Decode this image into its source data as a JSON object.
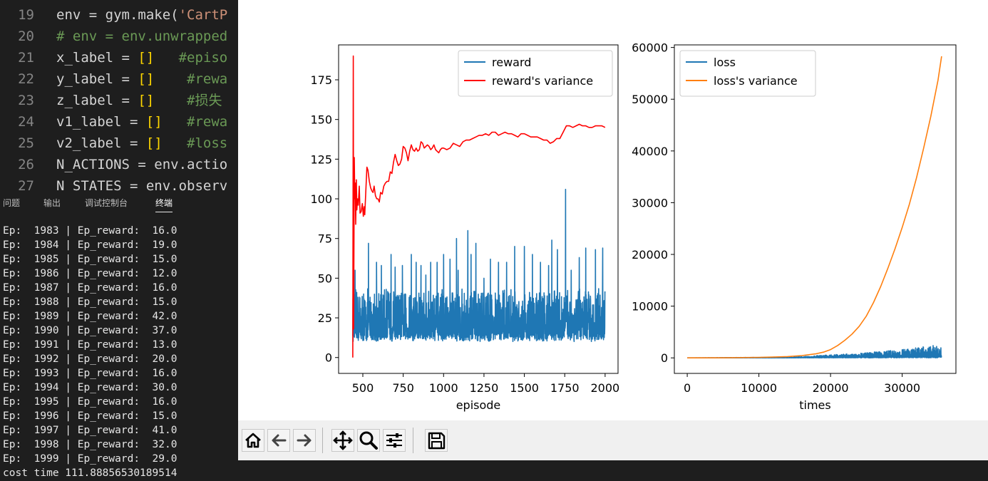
{
  "editor": {
    "lines": [
      {
        "num": "19",
        "code": [
          {
            "t": "env = gym.make(",
            "c": ""
          },
          {
            "t": "'CartP",
            "c": "str"
          }
        ]
      },
      {
        "num": "20",
        "code": [
          {
            "t": "# env = env.unwrapped",
            "c": "cmt"
          }
        ]
      },
      {
        "num": "21",
        "code": [
          {
            "t": "x_label = ",
            "c": ""
          },
          {
            "t": "[]",
            "c": "br"
          },
          {
            "t": "   #episo",
            "c": "cmt"
          }
        ]
      },
      {
        "num": "22",
        "code": [
          {
            "t": "y_label = ",
            "c": ""
          },
          {
            "t": "[]",
            "c": "br"
          },
          {
            "t": "    #rewa",
            "c": "cmt"
          }
        ]
      },
      {
        "num": "23",
        "code": [
          {
            "t": "z_label = ",
            "c": ""
          },
          {
            "t": "[]",
            "c": "br"
          },
          {
            "t": "    #损失",
            "c": "cmt"
          }
        ]
      },
      {
        "num": "24",
        "code": [
          {
            "t": "v1_label = ",
            "c": ""
          },
          {
            "t": "[]",
            "c": "br"
          },
          {
            "t": "   #rewa",
            "c": "cmt"
          }
        ]
      },
      {
        "num": "25",
        "code": [
          {
            "t": "v2_label = ",
            "c": ""
          },
          {
            "t": "[]",
            "c": "br"
          },
          {
            "t": "   #loss",
            "c": "cmt"
          }
        ]
      },
      {
        "num": "26",
        "code": [
          {
            "t": "N_ACTIONS = env.actio",
            "c": ""
          }
        ]
      },
      {
        "num": "27",
        "code": [
          {
            "t": "N_STATES = env.observ",
            "c": ""
          }
        ]
      }
    ]
  },
  "panel": {
    "tabs": [
      "问题",
      "输出",
      "调试控制台",
      "终端"
    ],
    "active_tab": "终端",
    "terminal_lines": [
      "Ep:  1983 | Ep_reward:  16.0",
      "Ep:  1984 | Ep_reward:  19.0",
      "Ep:  1985 | Ep_reward:  15.0",
      "Ep:  1986 | Ep_reward:  12.0",
      "Ep:  1987 | Ep_reward:  16.0",
      "Ep:  1988 | Ep_reward:  15.0",
      "Ep:  1989 | Ep_reward:  42.0",
      "Ep:  1990 | Ep_reward:  37.0",
      "Ep:  1991 | Ep_reward:  13.0",
      "Ep:  1992 | Ep_reward:  20.0",
      "Ep:  1993 | Ep_reward:  16.0",
      "Ep:  1994 | Ep_reward:  30.0",
      "Ep:  1995 | Ep_reward:  16.0",
      "Ep:  1996 | Ep_reward:  15.0",
      "Ep:  1997 | Ep_reward:  41.0",
      "Ep:  1998 | Ep_reward:  32.0",
      "Ep:  1999 | Ep_reward:  29.0",
      "cost time 111.88856530189514"
    ]
  },
  "toolbar": {
    "buttons": [
      "home-icon",
      "back-icon",
      "forward-icon",
      "pan-icon",
      "zoom-icon",
      "configure-subplots-icon",
      "save-icon"
    ]
  },
  "chart_data": [
    {
      "type": "line",
      "xlabel": "episode",
      "ylabel": "",
      "xlim": [
        350,
        2080
      ],
      "ylim": [
        -10,
        197
      ],
      "xticks": [
        500,
        750,
        1000,
        1250,
        1500,
        1750,
        2000
      ],
      "yticks": [
        0,
        25,
        50,
        75,
        100,
        125,
        150,
        175
      ],
      "legend": "top-right",
      "series": [
        {
          "name": "reward",
          "color": "#1f77b4",
          "x_range": [
            438,
            2000
          ],
          "baseline": 10,
          "typical_peak": 40,
          "peaks": [
            [
              445,
              28
            ],
            [
              452,
              55
            ],
            [
              480,
              38
            ],
            [
              505,
              40
            ],
            [
              535,
              72
            ],
            [
              585,
              60
            ],
            [
              615,
              58
            ],
            [
              645,
              43
            ],
            [
              675,
              65
            ],
            [
              700,
              57
            ],
            [
              745,
              58
            ],
            [
              800,
              65
            ],
            [
              830,
              60
            ],
            [
              860,
              58
            ],
            [
              890,
              52
            ],
            [
              920,
              60
            ],
            [
              960,
              60
            ],
            [
              1000,
              65
            ],
            [
              1040,
              62
            ],
            [
              1080,
              75
            ],
            [
              1090,
              55
            ],
            [
              1150,
              80
            ],
            [
              1170,
              65
            ],
            [
              1200,
              72
            ],
            [
              1250,
              50
            ],
            [
              1290,
              62
            ],
            [
              1340,
              60
            ],
            [
              1390,
              60
            ],
            [
              1440,
              70
            ],
            [
              1500,
              70
            ],
            [
              1550,
              65
            ],
            [
              1600,
              60
            ],
            [
              1650,
              58
            ],
            [
              1670,
              74
            ],
            [
              1705,
              68
            ],
            [
              1755,
              106
            ],
            [
              1790,
              55
            ],
            [
              1840,
              63
            ],
            [
              1880,
              69
            ],
            [
              1940,
              68
            ],
            [
              1985,
              69
            ],
            [
              2000,
              41
            ]
          ]
        },
        {
          "name": "reward's variance",
          "color": "#ff0000",
          "points": [
            [
              438,
              0
            ],
            [
              441,
              190
            ],
            [
              443,
              18
            ],
            [
              447,
              126
            ],
            [
              450,
              100
            ],
            [
              453,
              110
            ],
            [
              456,
              84
            ],
            [
              460,
              112
            ],
            [
              463,
              93
            ],
            [
              467,
              100
            ],
            [
              472,
              96
            ],
            [
              478,
              108
            ],
            [
              483,
              91
            ],
            [
              490,
              92
            ],
            [
              497,
              97
            ],
            [
              503,
              89
            ],
            [
              508,
              95
            ],
            [
              512,
              90
            ],
            [
              518,
              104
            ],
            [
              525,
              120
            ],
            [
              532,
              118
            ],
            [
              540,
              111
            ],
            [
              548,
              107
            ],
            [
              556,
              105
            ],
            [
              563,
              104
            ],
            [
              570,
              108
            ],
            [
              578,
              102
            ],
            [
              586,
              100
            ],
            [
              594,
              100
            ],
            [
              602,
              98
            ],
            [
              610,
              104
            ],
            [
              620,
              103
            ],
            [
              630,
              108
            ],
            [
              640,
              110
            ],
            [
              650,
              111
            ],
            [
              660,
              111
            ],
            [
              670,
              117
            ],
            [
              680,
              116
            ],
            [
              690,
              123
            ],
            [
              700,
              128
            ],
            [
              710,
              124
            ],
            [
              720,
              121
            ],
            [
              730,
              122
            ],
            [
              740,
              125
            ],
            [
              750,
              133
            ],
            [
              760,
              132
            ],
            [
              770,
              129
            ],
            [
              780,
              124
            ],
            [
              790,
              130
            ],
            [
              800,
              134
            ],
            [
              810,
              131
            ],
            [
              820,
              130
            ],
            [
              830,
              132
            ],
            [
              840,
              130
            ],
            [
              850,
              131
            ],
            [
              860,
              136
            ],
            [
              870,
              135
            ],
            [
              880,
              132
            ],
            [
              890,
              133
            ],
            [
              900,
              134
            ],
            [
              910,
              133
            ],
            [
              920,
              131
            ],
            [
              930,
              132
            ],
            [
              940,
              134
            ],
            [
              950,
              131
            ],
            [
              960,
              130
            ],
            [
              970,
              129
            ],
            [
              980,
              131
            ],
            [
              990,
              132
            ],
            [
              1000,
              132
            ],
            [
              1020,
              131
            ],
            [
              1040,
              132
            ],
            [
              1060,
              135
            ],
            [
              1080,
              134
            ],
            [
              1100,
              133
            ],
            [
              1120,
              136
            ],
            [
              1140,
              137
            ],
            [
              1160,
              137
            ],
            [
              1180,
              138
            ],
            [
              1200,
              139
            ],
            [
              1220,
              140
            ],
            [
              1240,
              140
            ],
            [
              1260,
              141
            ],
            [
              1280,
              140
            ],
            [
              1300,
              142
            ],
            [
              1320,
              142
            ],
            [
              1340,
              140
            ],
            [
              1360,
              141
            ],
            [
              1380,
              142
            ],
            [
              1400,
              141
            ],
            [
              1420,
              141
            ],
            [
              1440,
              140
            ],
            [
              1460,
              139
            ],
            [
              1480,
              141
            ],
            [
              1500,
              141
            ],
            [
              1520,
              140
            ],
            [
              1540,
              139
            ],
            [
              1560,
              139
            ],
            [
              1580,
              139
            ],
            [
              1600,
              138
            ],
            [
              1620,
              137
            ],
            [
              1640,
              137
            ],
            [
              1660,
              135
            ],
            [
              1680,
              136
            ],
            [
              1700,
              138
            ],
            [
              1720,
              138
            ],
            [
              1740,
              142
            ],
            [
              1760,
              146
            ],
            [
              1780,
              146
            ],
            [
              1800,
              145
            ],
            [
              1820,
              146
            ],
            [
              1840,
              147
            ],
            [
              1860,
              146
            ],
            [
              1880,
              146
            ],
            [
              1900,
              145
            ],
            [
              1920,
              145
            ],
            [
              1940,
              146
            ],
            [
              1960,
              146
            ],
            [
              1980,
              146
            ],
            [
              2000,
              145
            ]
          ]
        }
      ]
    },
    {
      "type": "line",
      "xlabel": "times",
      "ylabel": "",
      "xlim": [
        -1800,
        37500
      ],
      "ylim": [
        -3000,
        60500
      ],
      "xticks": [
        0,
        10000,
        20000,
        30000
      ],
      "yticks": [
        0,
        10000,
        20000,
        30000,
        40000,
        50000,
        60000
      ],
      "legend": "top-left",
      "series": [
        {
          "name": "loss",
          "color": "#1f77b4",
          "noise_band": [
            [
              0,
              0
            ],
            [
              10000,
              100
            ],
            [
              15000,
              200
            ],
            [
              20000,
              600
            ],
            [
              25000,
              1000
            ],
            [
              30000,
              1600
            ],
            [
              35500,
              2600
            ]
          ]
        },
        {
          "name": "loss's variance",
          "color": "#ff7f0e",
          "points": [
            [
              0,
              0
            ],
            [
              5000,
              20
            ],
            [
              10000,
              100
            ],
            [
              12000,
              150
            ],
            [
              14000,
              250
            ],
            [
              16000,
              450
            ],
            [
              18000,
              800
            ],
            [
              19000,
              1100
            ],
            [
              20000,
              1600
            ],
            [
              21000,
              2400
            ],
            [
              22000,
              3400
            ],
            [
              23000,
              4600
            ],
            [
              24000,
              6100
            ],
            [
              25000,
              8100
            ],
            [
              26000,
              10700
            ],
            [
              27000,
              13800
            ],
            [
              28000,
              17300
            ],
            [
              29000,
              21100
            ],
            [
              30000,
              25200
            ],
            [
              31000,
              29700
            ],
            [
              32000,
              34800
            ],
            [
              33000,
              40600
            ],
            [
              34000,
              46700
            ],
            [
              35000,
              53700
            ],
            [
              35500,
              58300
            ]
          ]
        }
      ]
    }
  ]
}
